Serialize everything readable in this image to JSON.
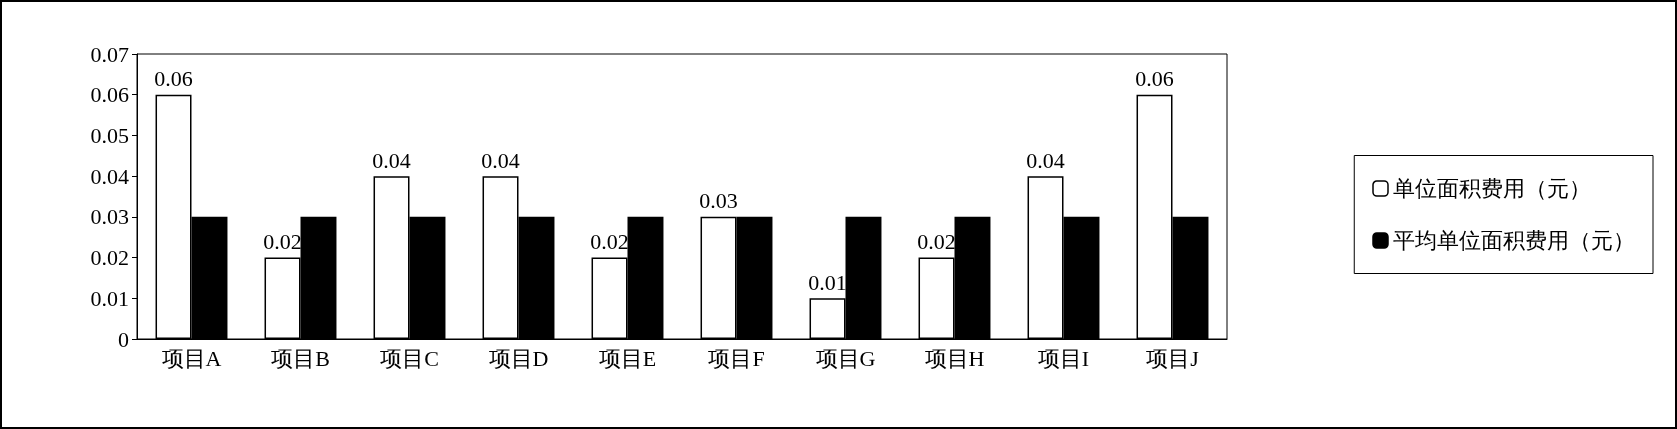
{
  "chart_data": {
    "type": "bar",
    "categories": [
      "项目A",
      "项目B",
      "项目C",
      "项目D",
      "项目E",
      "项目F",
      "项目G",
      "项目H",
      "项目I",
      "项目J"
    ],
    "series": [
      {
        "name": "单位面积费用（元）",
        "color": "#ffffff",
        "values": [
          0.06,
          0.02,
          0.04,
          0.04,
          0.02,
          0.03,
          0.01,
          0.02,
          0.04,
          0.06
        ],
        "value_labels": [
          "0.06",
          "0.02",
          "0.04",
          "0.04",
          "0.02",
          "0.03",
          "0.01",
          "0.02",
          "0.04",
          "0.06"
        ]
      },
      {
        "name": "平均单位面积费用（元）",
        "color": "#000000",
        "values": [
          0.03,
          0.03,
          0.03,
          0.03,
          0.03,
          0.03,
          0.03,
          0.03,
          0.03,
          0.03
        ]
      }
    ],
    "ylim": [
      0,
      0.07
    ],
    "yticks": [
      0,
      0.01,
      0.02,
      0.03,
      0.04,
      0.05,
      0.06,
      0.07
    ],
    "grid": false,
    "legend": "right"
  }
}
